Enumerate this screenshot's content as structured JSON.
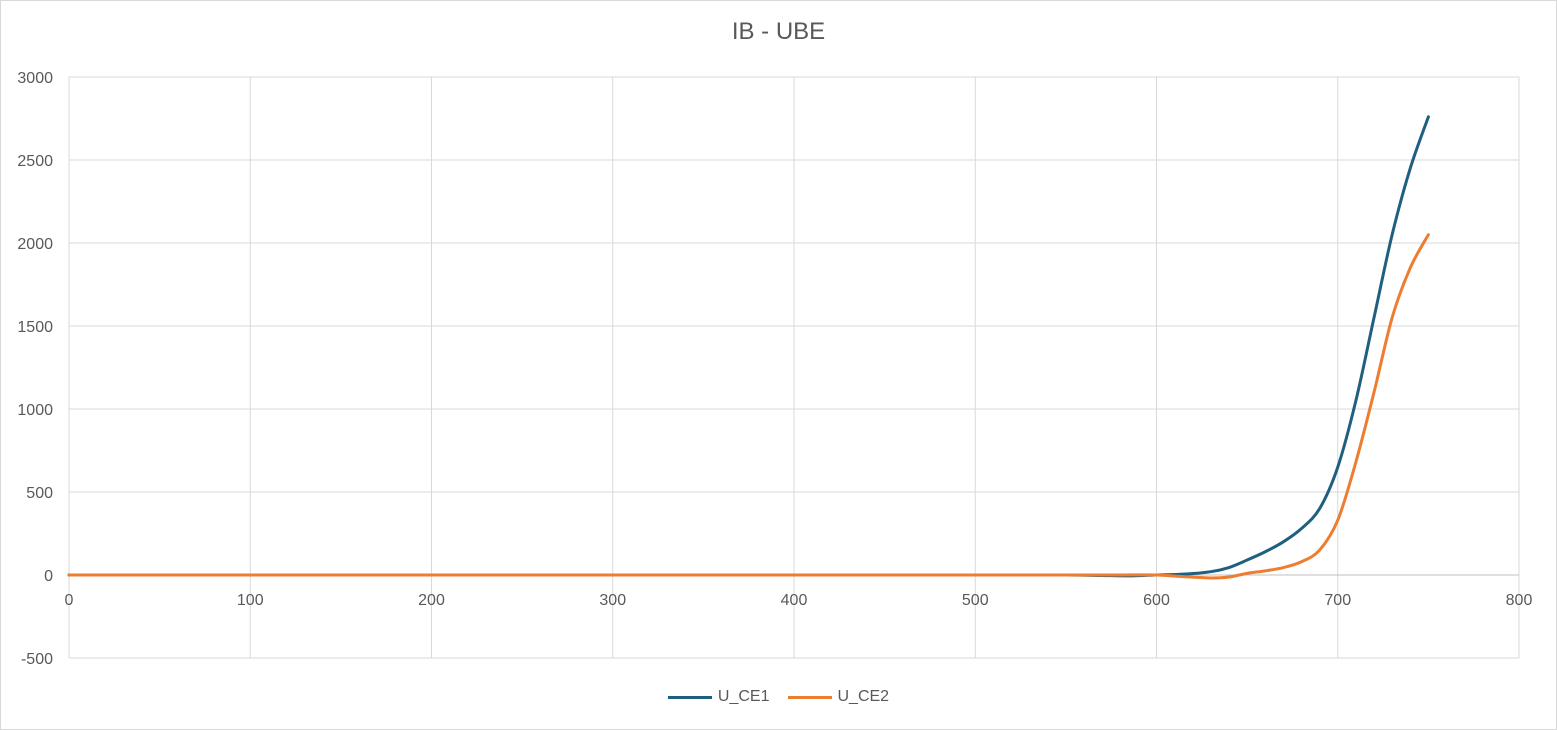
{
  "chart_data": {
    "type": "line",
    "title": "IB - UBE",
    "xlabel": "",
    "ylabel": "",
    "xlim": [
      0,
      800
    ],
    "ylim": [
      -500,
      3000
    ],
    "x_ticks": [
      "0",
      "100",
      "200",
      "300",
      "400",
      "500",
      "600",
      "700",
      "800"
    ],
    "y_ticks": [
      "-500",
      "0",
      "500",
      "1000",
      "1500",
      "2000",
      "2500",
      "3000"
    ],
    "grid": true,
    "legend_position": "bottom",
    "series": [
      {
        "name": "U_CE1",
        "color": "#1f5f7f",
        "points": [
          [
            0,
            0
          ],
          [
            100,
            0
          ],
          [
            200,
            0
          ],
          [
            300,
            0
          ],
          [
            400,
            0
          ],
          [
            500,
            0
          ],
          [
            550,
            0
          ],
          [
            570,
            -3
          ],
          [
            585,
            -5
          ],
          [
            600,
            0
          ],
          [
            615,
            5
          ],
          [
            630,
            20
          ],
          [
            640,
            45
          ],
          [
            650,
            90
          ],
          [
            660,
            140
          ],
          [
            670,
            200
          ],
          [
            680,
            280
          ],
          [
            690,
            400
          ],
          [
            700,
            650
          ],
          [
            710,
            1050
          ],
          [
            720,
            1550
          ],
          [
            730,
            2050
          ],
          [
            740,
            2450
          ],
          [
            750,
            2760
          ]
        ]
      },
      {
        "name": "U_CE2",
        "color": "#ed7d31",
        "points": [
          [
            0,
            0
          ],
          [
            100,
            0
          ],
          [
            200,
            0
          ],
          [
            300,
            0
          ],
          [
            400,
            0
          ],
          [
            500,
            0
          ],
          [
            550,
            0
          ],
          [
            580,
            0
          ],
          [
            600,
            0
          ],
          [
            615,
            -10
          ],
          [
            630,
            -18
          ],
          [
            640,
            -12
          ],
          [
            650,
            10
          ],
          [
            660,
            25
          ],
          [
            670,
            45
          ],
          [
            680,
            80
          ],
          [
            690,
            150
          ],
          [
            700,
            330
          ],
          [
            710,
            680
          ],
          [
            720,
            1100
          ],
          [
            730,
            1550
          ],
          [
            740,
            1850
          ],
          [
            750,
            2050
          ]
        ]
      }
    ]
  }
}
